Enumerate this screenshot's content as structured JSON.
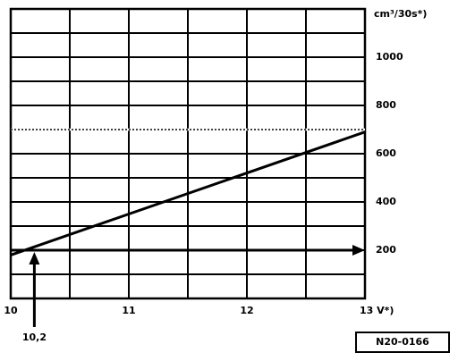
{
  "chart_data": {
    "type": "line",
    "y_label": "cm³/30s*)",
    "x": [
      10,
      13
    ],
    "values": [
      180,
      690
    ],
    "color": "#000000",
    "xlim": [
      10,
      13
    ],
    "xticks": [
      10,
      11,
      12,
      {
        "value": 13,
        "label": "13 V*)"
      }
    ],
    "xminor": [
      10.5,
      11.5,
      12.5
    ],
    "ylim": [
      0,
      1200
    ],
    "yticks": [
      200,
      400,
      600,
      800,
      1000
    ],
    "yminor": [
      100,
      300,
      500,
      900,
      1100
    ],
    "dotted_line": 700,
    "arrow_y": 200,
    "marker": {
      "value": 10.2,
      "label": "10,2"
    },
    "figure_id": "N20-0166",
    "grid": true
  }
}
